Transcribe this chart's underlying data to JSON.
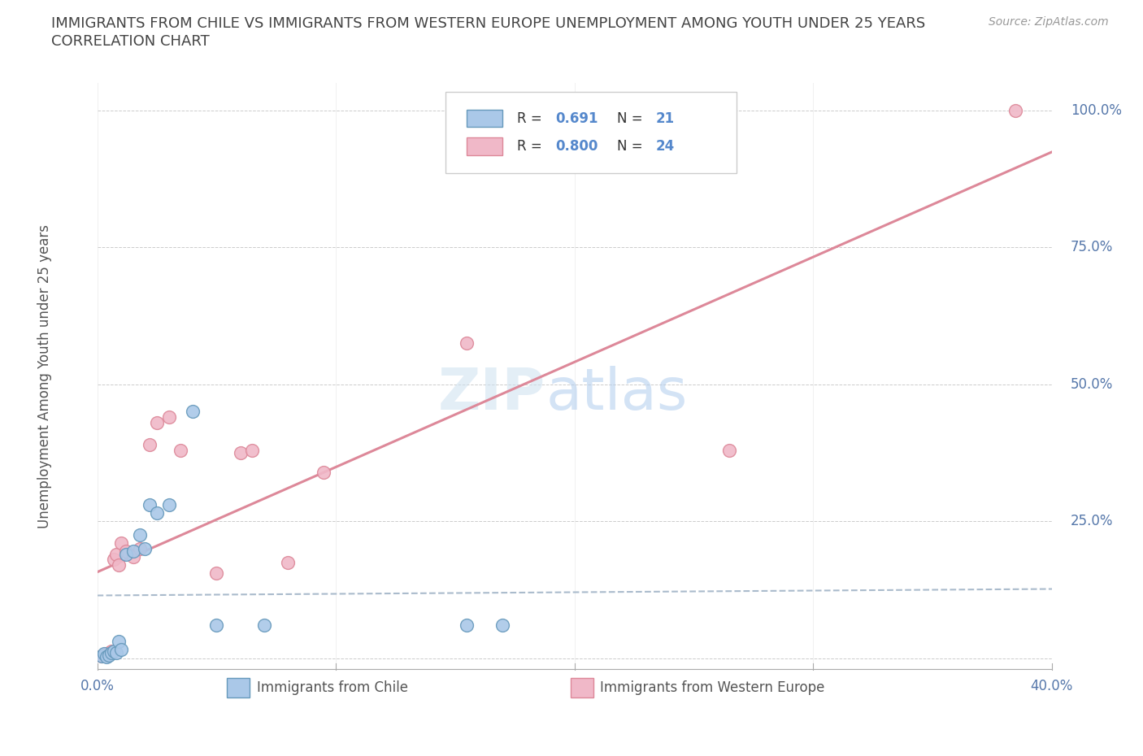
{
  "title_line1": "IMMIGRANTS FROM CHILE VS IMMIGRANTS FROM WESTERN EUROPE UNEMPLOYMENT AMONG YOUTH UNDER 25 YEARS",
  "title_line2": "CORRELATION CHART",
  "ylabel": "Unemployment Among Youth under 25 years",
  "source": "Source: ZipAtlas.com",
  "xlim": [
    0.0,
    0.4
  ],
  "ylim": [
    -0.02,
    1.05
  ],
  "chile_color": "#aac8e8",
  "chile_edge": "#6699bb",
  "we_color": "#f0b8c8",
  "we_edge": "#dd8899",
  "chile_R": 0.691,
  "chile_N": 21,
  "we_R": 0.8,
  "we_N": 24,
  "grid_color": "#cccccc",
  "background_color": "#ffffff",
  "title_color": "#444444",
  "axis_label_color": "#5577aa",
  "chile_scatter_x": [
    0.002,
    0.003,
    0.004,
    0.005,
    0.006,
    0.007,
    0.008,
    0.009,
    0.01,
    0.012,
    0.015,
    0.018,
    0.02,
    0.022,
    0.025,
    0.03,
    0.04,
    0.05,
    0.07,
    0.155,
    0.17
  ],
  "chile_scatter_y": [
    0.004,
    0.008,
    0.003,
    0.006,
    0.01,
    0.012,
    0.01,
    0.03,
    0.015,
    0.19,
    0.195,
    0.225,
    0.2,
    0.28,
    0.265,
    0.28,
    0.45,
    0.06,
    0.06,
    0.06,
    0.06
  ],
  "we_scatter_x": [
    0.002,
    0.003,
    0.004,
    0.005,
    0.006,
    0.007,
    0.008,
    0.009,
    0.01,
    0.012,
    0.015,
    0.018,
    0.022,
    0.025,
    0.03,
    0.035,
    0.05,
    0.06,
    0.065,
    0.08,
    0.095,
    0.155,
    0.265,
    0.385
  ],
  "we_scatter_y": [
    0.004,
    0.006,
    0.008,
    0.01,
    0.012,
    0.18,
    0.19,
    0.17,
    0.21,
    0.195,
    0.185,
    0.2,
    0.39,
    0.43,
    0.44,
    0.38,
    0.155,
    0.375,
    0.38,
    0.175,
    0.34,
    0.575,
    0.38,
    1.0
  ],
  "legend_label_chile": "Immigrants from Chile",
  "legend_label_we": "Immigrants from Western Europe"
}
